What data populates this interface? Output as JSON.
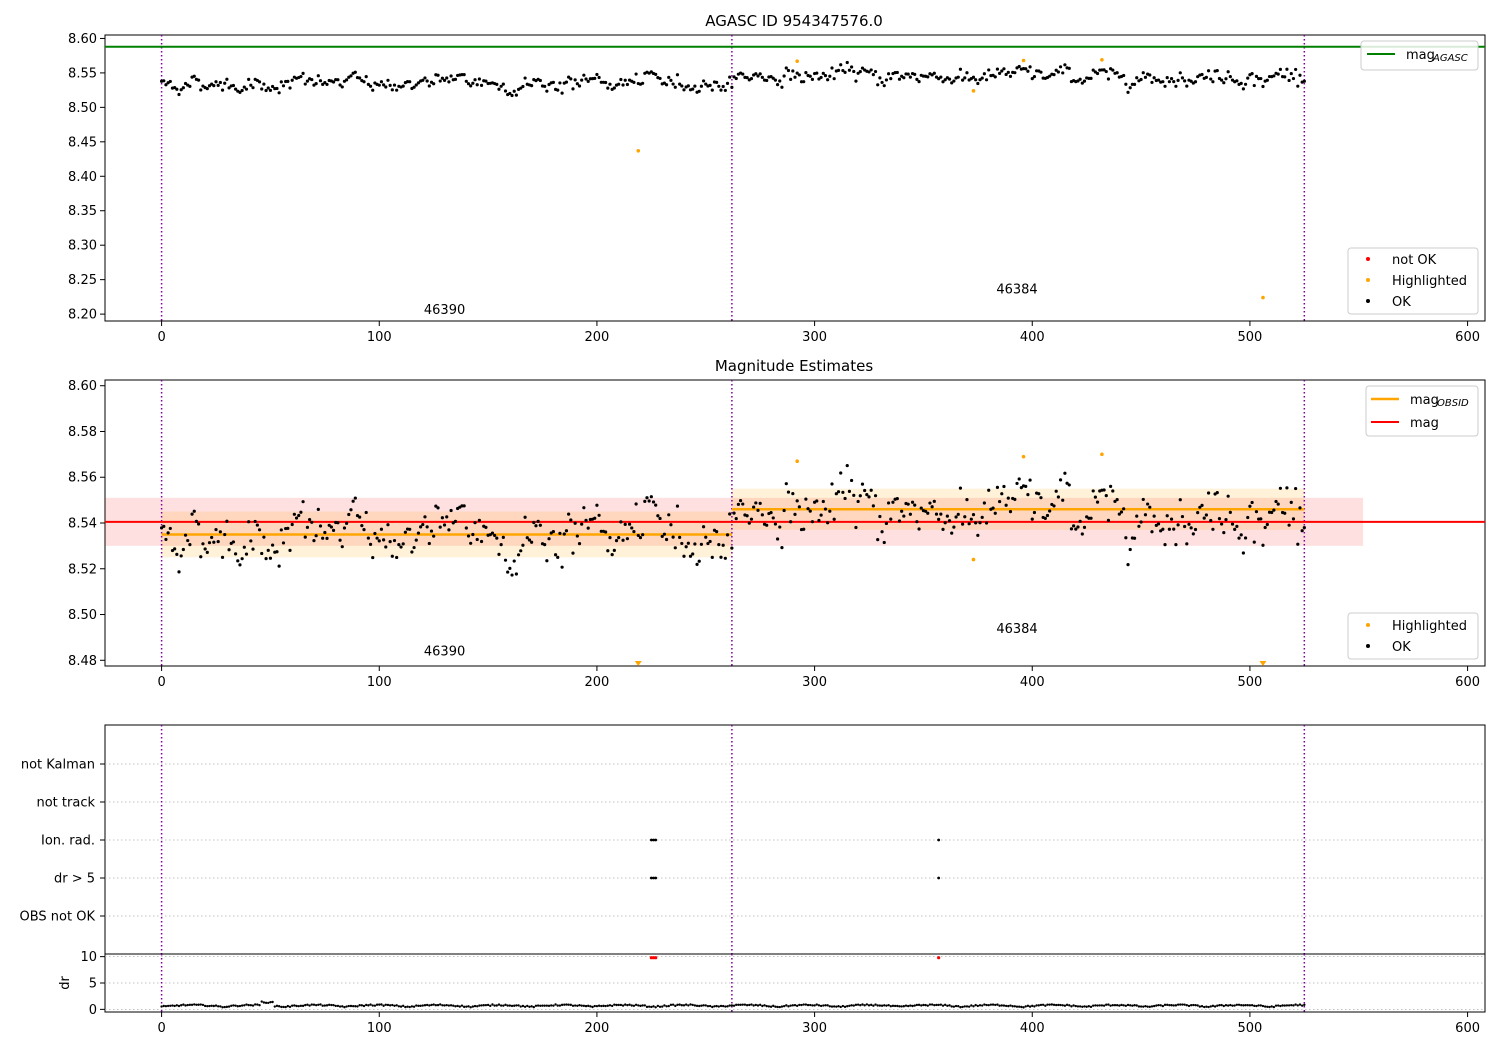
{
  "chart_data": [
    {
      "type": "scatter",
      "title": "AGASC ID 954347576.0",
      "xlim": [
        -26,
        608
      ],
      "ylim": [
        8.19,
        8.605
      ],
      "xticks": [
        0,
        100,
        200,
        300,
        400,
        500,
        600
      ],
      "yticks": [
        "8.20",
        "8.25",
        "8.30",
        "8.35",
        "8.40",
        "8.45",
        "8.50",
        "8.55",
        "8.60"
      ],
      "hline": {
        "name": "mag_AGASC",
        "y": 8.588,
        "color": "#008000"
      },
      "obsid_boundaries": [
        0,
        262,
        525
      ],
      "obsid_labels": [
        {
          "text": "46390",
          "x": 130,
          "y": 8.2
        },
        {
          "text": "46384",
          "x": 393,
          "y": 8.23
        }
      ],
      "highlighted_points": [
        {
          "x": 219,
          "y": 8.437
        },
        {
          "x": 292,
          "y": 8.567
        },
        {
          "x": 373,
          "y": 8.524
        },
        {
          "x": 396,
          "y": 8.568
        },
        {
          "x": 432,
          "y": 8.569
        },
        {
          "x": 506,
          "y": 8.224
        }
      ],
      "ok_series": {
        "x_start": 0,
        "x_end": 525,
        "segments": [
          {
            "x": [
              0,
              262
            ],
            "mean": 8.535
          },
          {
            "x": [
              262,
              525
            ],
            "mean": 8.546
          }
        ],
        "noise_approx": 0.008
      },
      "legend": {
        "location": "top-right",
        "entries": [
          {
            "label": "mag",
            "subscript": "AGASC",
            "color": "#008000"
          }
        ]
      },
      "legend2": {
        "location": "bottom-right",
        "entries": [
          {
            "label": "not OK",
            "color": "#ff0000"
          },
          {
            "label": "Highlighted",
            "color": "#ffa500"
          },
          {
            "label": "OK",
            "color": "#000000"
          }
        ]
      }
    },
    {
      "type": "scatter",
      "title": "Magnitude Estimates",
      "xlim": [
        -26,
        608
      ],
      "ylim": [
        8.4775,
        8.6025
      ],
      "xticks": [
        0,
        100,
        200,
        300,
        400,
        500,
        600
      ],
      "yticks": [
        "8.48",
        "8.50",
        "8.52",
        "8.54",
        "8.56",
        "8.58",
        "8.60"
      ],
      "mag": {
        "y": 8.5405,
        "band": [
          8.53,
          8.551
        ],
        "x": [
          -26,
          552
        ],
        "color": "#ff0000"
      },
      "mag_obsid": [
        {
          "x": [
            0,
            262
          ],
          "y": 8.535,
          "band": [
            8.525,
            8.545
          ]
        },
        {
          "x": [
            262,
            525
          ],
          "y": 8.546,
          "band": [
            8.537,
            8.555
          ]
        }
      ],
      "obsid_boundaries": [
        0,
        262,
        525
      ],
      "obsid_labels": [
        {
          "text": "46390",
          "x": 130,
          "y": 8.482
        },
        {
          "text": "46384",
          "x": 393,
          "y": 8.492
        }
      ],
      "highlighted_points": [
        {
          "x": 292,
          "y": 8.567
        },
        {
          "x": 373,
          "y": 8.524
        },
        {
          "x": 396,
          "y": 8.569
        },
        {
          "x": 432,
          "y": 8.57
        }
      ],
      "offscale_markers": [
        {
          "x": 219
        },
        {
          "x": 506
        }
      ],
      "legend": {
        "location": "top-right",
        "entries": [
          {
            "label": "mag",
            "subscript": "OBSID",
            "color": "#ffa500"
          },
          {
            "label": "mag",
            "subscript": "",
            "color": "#ff0000"
          }
        ]
      },
      "legend2": {
        "location": "bottom-right",
        "entries": [
          {
            "label": "Highlighted",
            "color": "#ffa500"
          },
          {
            "label": "OK",
            "color": "#000000"
          }
        ]
      }
    },
    {
      "type": "scatter",
      "xlim": [
        -26,
        608
      ],
      "categories": [
        "not Kalman",
        "not track",
        "Ion. rad.",
        "dr > 5",
        "OBS not OK"
      ],
      "flag_points": [
        {
          "category": "Ion. rad.",
          "x": [
            225,
            226,
            227,
            357
          ]
        },
        {
          "category": "dr > 5",
          "x": [
            225,
            226,
            227,
            357
          ]
        }
      ],
      "obsid_boundaries": [
        0,
        262,
        525
      ]
    },
    {
      "type": "scatter",
      "xlim": [
        -26,
        608
      ],
      "ylim": [
        -0.5,
        10.5
      ],
      "ylabel": "dr",
      "yticks": [
        0,
        5,
        10
      ],
      "xticks": [
        0,
        100,
        200,
        300,
        400,
        500,
        600
      ],
      "notok_points": [
        {
          "x": 225,
          "y": 9.8
        },
        {
          "x": 226,
          "y": 9.8
        },
        {
          "x": 227,
          "y": 9.8
        },
        {
          "x": 357,
          "y": 9.8
        }
      ],
      "obsid_boundaries": [
        0,
        262,
        525
      ]
    }
  ]
}
